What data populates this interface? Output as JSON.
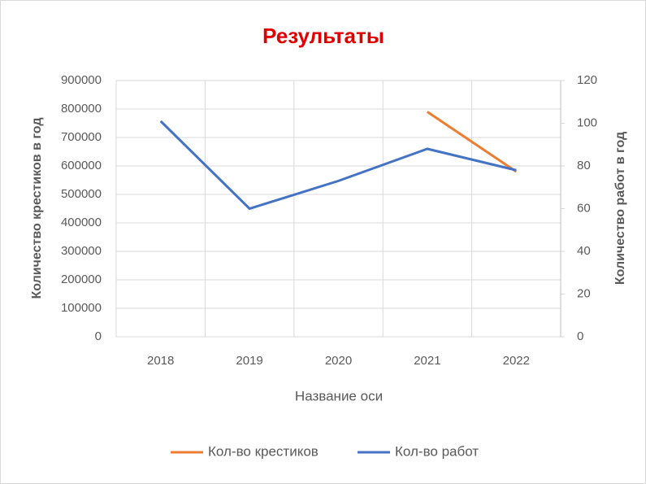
{
  "chart_data": {
    "type": "line",
    "title": "Результаты",
    "categories": [
      "2018",
      "2019",
      "2020",
      "2021",
      "2022"
    ],
    "x_label": "Название оси",
    "y_label": "Количество  крестиков  в год",
    "y2_label": "Количество   работ в год",
    "series": [
      {
        "name": "Кол-во крестиков",
        "color": "#ed7d31",
        "values": [
          null,
          null,
          null,
          790000,
          580000
        ]
      },
      {
        "name": "Кол-во работ",
        "color": "#4472c4",
        "axis": "y2",
        "values": [
          101,
          60,
          73,
          88,
          78
        ]
      }
    ],
    "ylim": [
      0,
      900000
    ],
    "yticks": [
      0,
      100000,
      200000,
      300000,
      400000,
      500000,
      600000,
      700000,
      800000,
      900000
    ],
    "y2lim": [
      0,
      120
    ],
    "y2ticks": [
      0,
      20,
      40,
      60,
      80,
      100,
      120
    ],
    "grid": true,
    "legend": "bottom"
  }
}
